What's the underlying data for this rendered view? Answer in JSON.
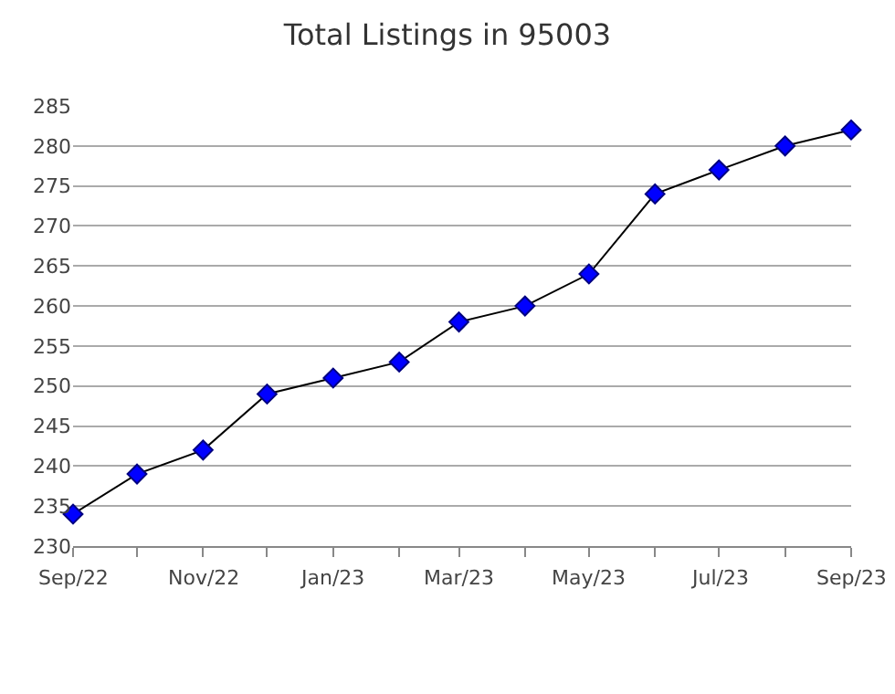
{
  "chart_data": {
    "type": "line",
    "title": "Total Listings in 95003",
    "x": [
      "2022-09",
      "2022-10",
      "2022-11",
      "2022-12",
      "2023-01",
      "2023-02",
      "2023-03",
      "2023-04",
      "2023-05",
      "2023-06",
      "2023-07",
      "2023-08",
      "2023-09"
    ],
    "series": [
      {
        "color": "#0000ff",
        "values": [
          234,
          239,
          242,
          249,
          251,
          253,
          258,
          260,
          264,
          274,
          277,
          280,
          282
        ]
      }
    ],
    "xlim": [
      "2022-09",
      "2023-09"
    ],
    "xticks": [
      {
        "value": "2022-09",
        "label": "Sep/22"
      },
      {
        "value": "2022-10",
        "label": null
      },
      {
        "value": "2022-11",
        "label": "Nov/22"
      },
      {
        "value": "2022-12",
        "label": null
      },
      {
        "value": "2023-01",
        "label": "Jan/23"
      },
      {
        "value": "2023-02",
        "label": null
      },
      {
        "value": "2023-03",
        "label": "Mar/23"
      },
      {
        "value": "2023-04",
        "label": null
      },
      {
        "value": "2023-05",
        "label": "May/23"
      },
      {
        "value": "2023-06",
        "label": null
      },
      {
        "value": "2023-07",
        "label": "Jul/23"
      },
      {
        "value": "2023-08",
        "label": null
      },
      {
        "value": "2023-09",
        "label": "Sep/23"
      }
    ],
    "ylim": [
      230,
      285
    ],
    "yticks": [
      230,
      235,
      240,
      245,
      250,
      255,
      260,
      265,
      270,
      275,
      280,
      285
    ],
    "grid": "y",
    "marker": "diamond",
    "line_style": "solid",
    "legend": false
  }
}
